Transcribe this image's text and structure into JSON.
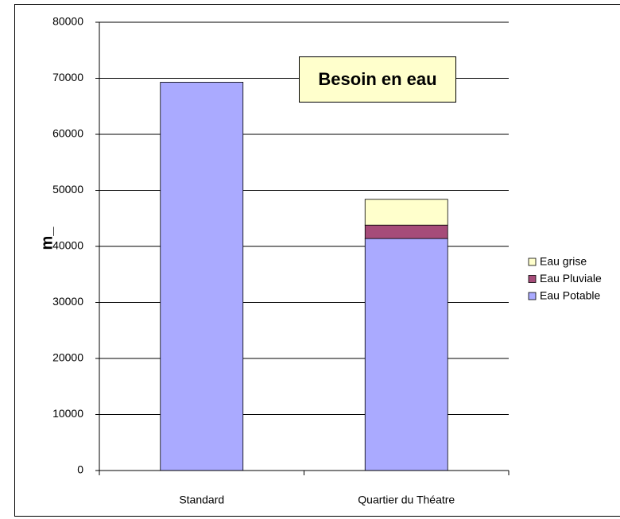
{
  "chart_data": {
    "type": "stacked_bar",
    "title": "Besoin en eau",
    "y_label": "m_",
    "categories": [
      "Standard",
      "Quartier du Théatre"
    ],
    "series": [
      {
        "name": "Eau Potable",
        "color": "#aaaaff",
        "values": [
          69300,
          41400
        ]
      },
      {
        "name": "Eau Pluviale",
        "color": "#a64c79",
        "values": [
          0,
          2400
        ]
      },
      {
        "name": "Eau grise",
        "color": "#ffffcc",
        "values": [
          0,
          4600
        ]
      }
    ],
    "ylim": [
      0,
      80000
    ],
    "yticks": [
      0,
      10000,
      20000,
      30000,
      40000,
      50000,
      60000,
      70000,
      80000
    ],
    "grid": true,
    "legend": "right"
  }
}
